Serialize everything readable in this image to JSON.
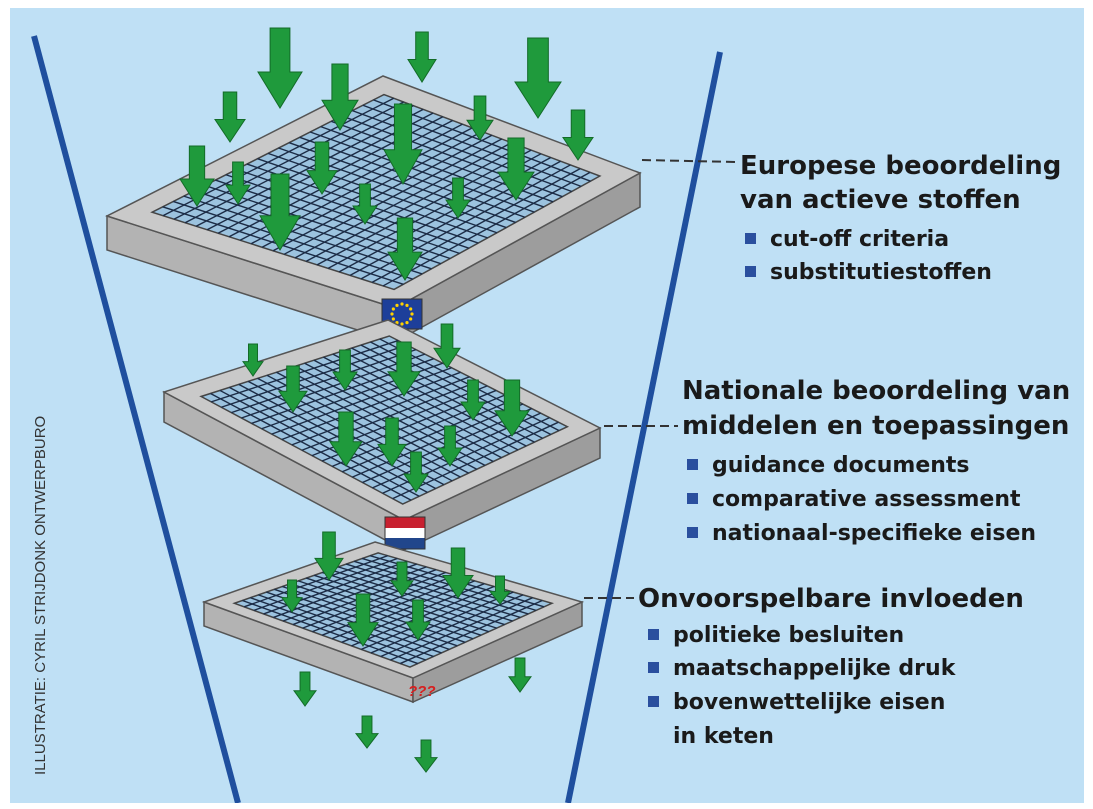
{
  "colors": {
    "background": "#bfe0f5",
    "funnel_line": "#1f4f9e",
    "frame_top": "#c9c9c9",
    "frame_side": "#a9a9a9",
    "mesh": "#1c2c46",
    "arrow": "#1f9a3c",
    "bullet": "#2a4f9e"
  },
  "sections": [
    {
      "heading_lines": [
        "Europese beoordeling",
        "van actieve stoffen"
      ],
      "items": [
        "cut-off criteria",
        "substitutiestoffen"
      ],
      "emblem": "eu-flag-icon"
    },
    {
      "heading_lines": [
        "Nationale beoordeling van",
        "middelen en toepassingen"
      ],
      "items": [
        "guidance documents",
        "comparative assessment",
        "nationaal-specifieke eisen"
      ],
      "emblem": "dutch-flag-icon"
    },
    {
      "heading_lines": [
        "Onvoorspelbare invloeden"
      ],
      "items": [
        "politieke besluiten",
        "maatschappelijke druk",
        "bovenwettelijke eisen",
        "in keten"
      ],
      "emblem_text": "???"
    }
  ],
  "credit": "ILLUSTRATIE: CYRIL STRIJDONK ONTWERPBURO"
}
